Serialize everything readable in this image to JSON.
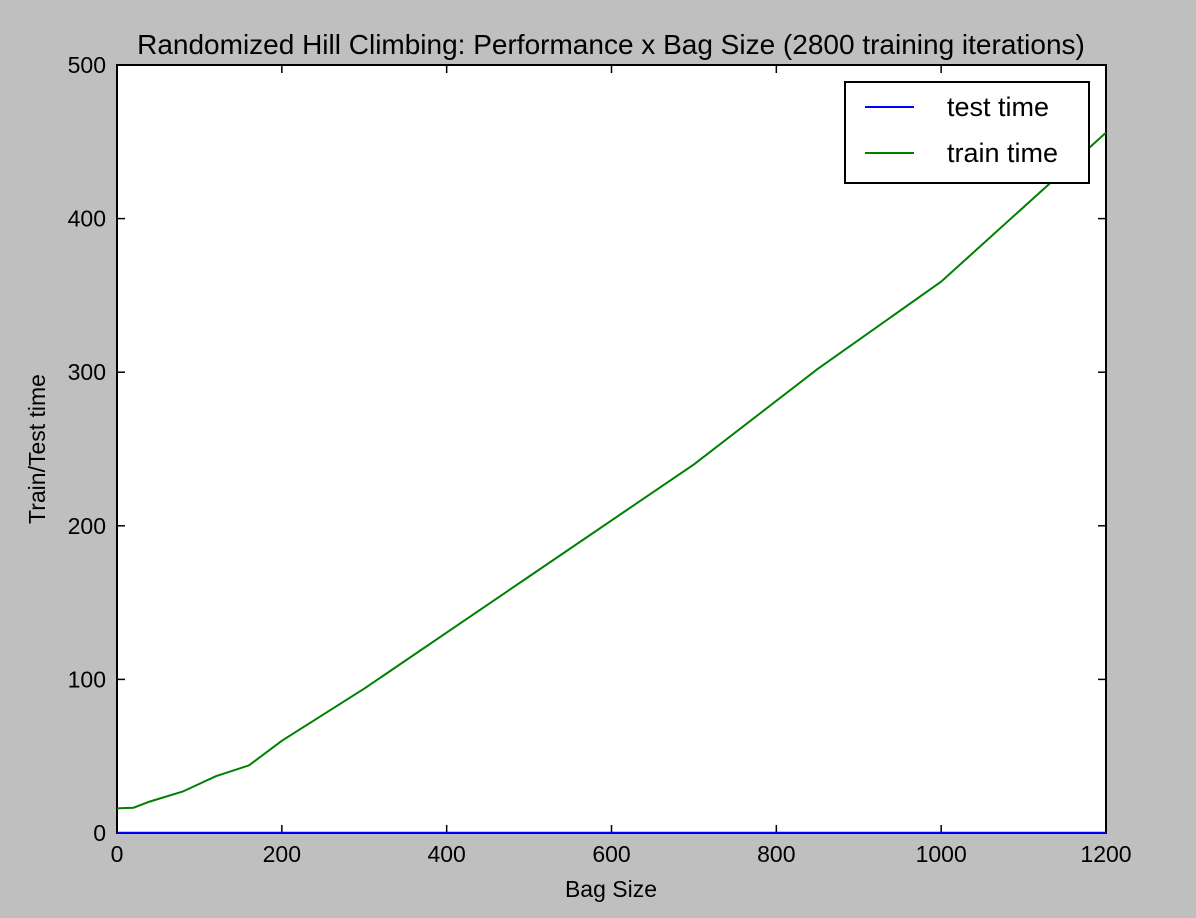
{
  "chart_data": {
    "type": "line",
    "title": "Randomized Hill Climbing: Performance x Bag Size (2800 training iterations)",
    "xlabel": "Bag Size",
    "ylabel": "Train/Test time",
    "xlim": [
      0,
      1200
    ],
    "ylim": [
      0,
      500
    ],
    "xticks": [
      0,
      200,
      400,
      600,
      800,
      1000,
      1200
    ],
    "yticks": [
      0,
      100,
      200,
      300,
      400,
      500
    ],
    "x_tick_labels": [
      "0",
      "200",
      "400",
      "600",
      "800",
      "1000",
      "1200"
    ],
    "y_tick_labels": [
      "0",
      "100",
      "200",
      "300",
      "400",
      "500"
    ],
    "grid": false,
    "legend_position": "top-right",
    "series": [
      {
        "name": "test time",
        "color": "#0000ff",
        "x": [
          0,
          20,
          40,
          80,
          120,
          160,
          200,
          300,
          500,
          700,
          850,
          1000,
          1200
        ],
        "y": [
          0.1,
          0.1,
          0.1,
          0.1,
          0.1,
          0.1,
          0.1,
          0.1,
          0.1,
          0.1,
          0.1,
          0.1,
          0.1
        ]
      },
      {
        "name": "train time",
        "color": "#008000",
        "x": [
          0,
          20,
          40,
          80,
          120,
          160,
          200,
          300,
          500,
          700,
          850,
          1000,
          1200
        ],
        "y": [
          16,
          16.5,
          20.5,
          27,
          37,
          44,
          60,
          94,
          167,
          240,
          302,
          359,
          456
        ]
      }
    ]
  }
}
